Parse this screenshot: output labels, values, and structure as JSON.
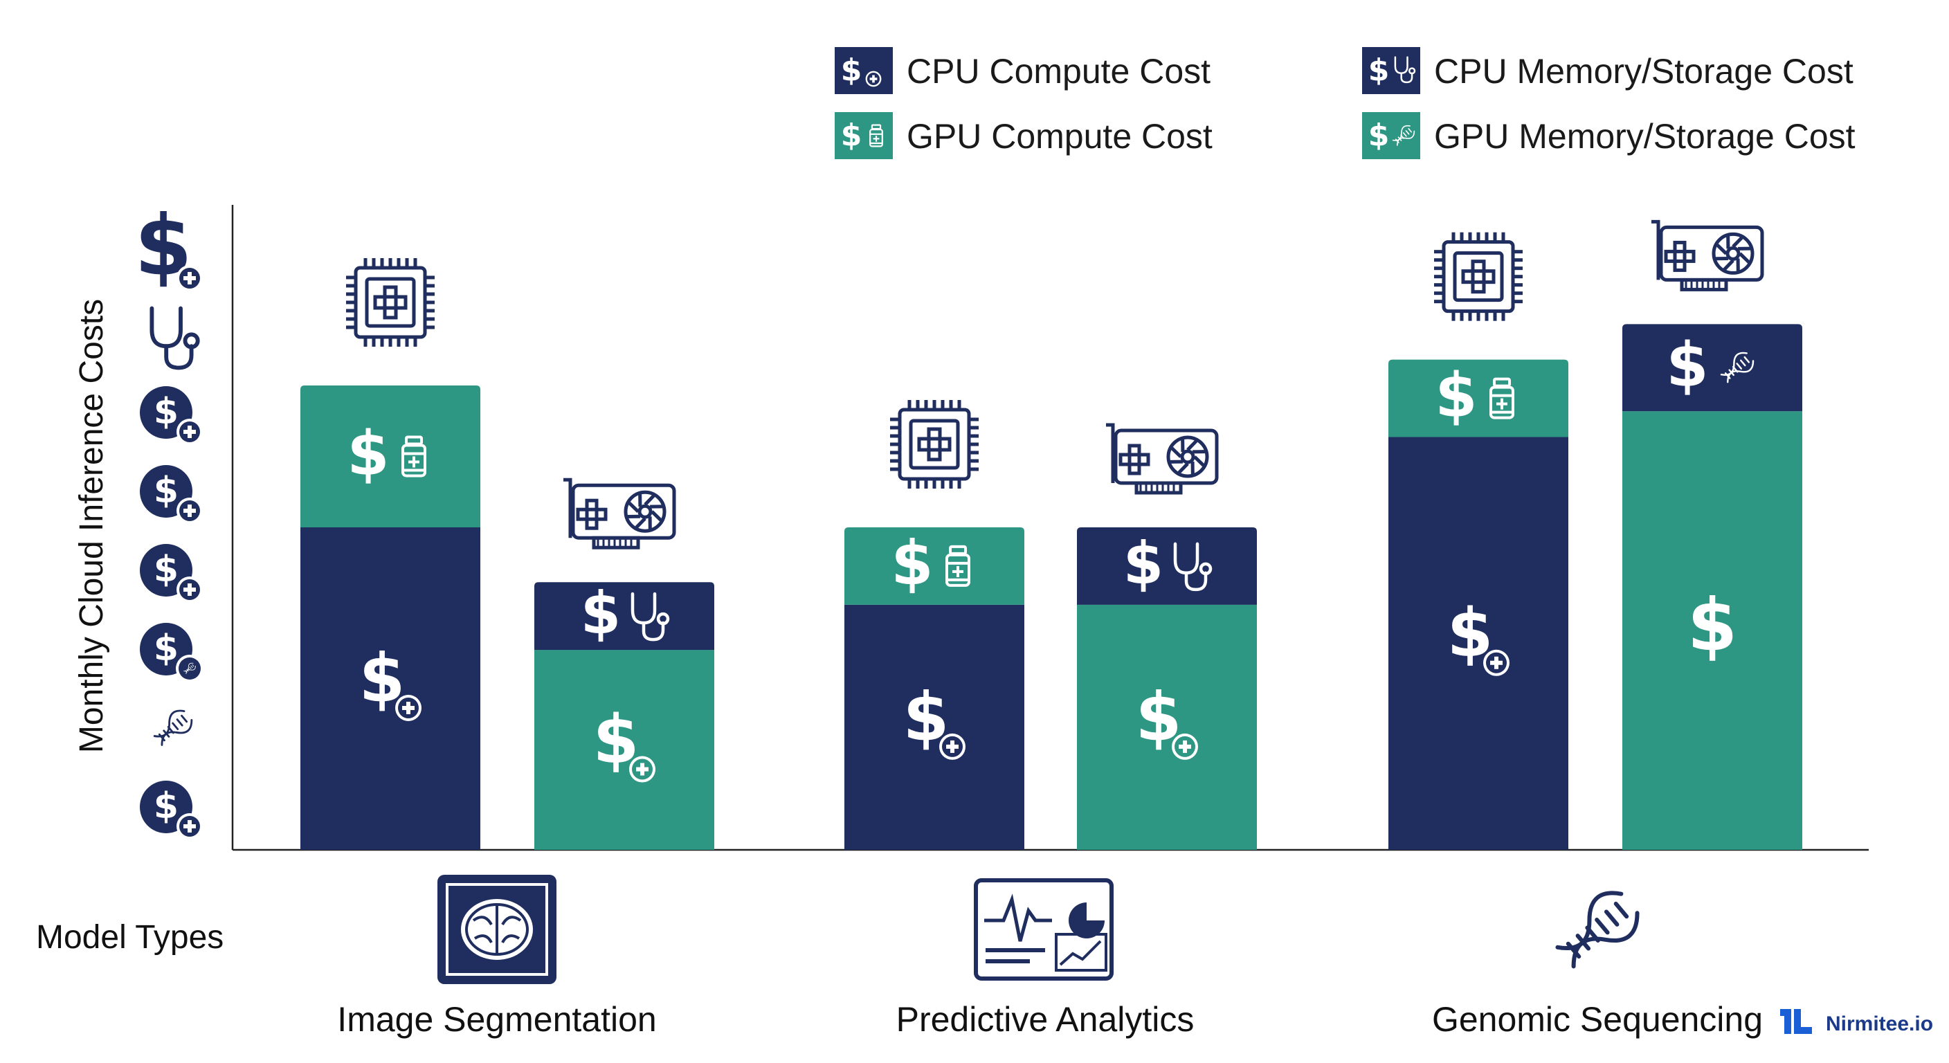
{
  "chart_data": {
    "type": "bar",
    "stacked": true,
    "ylabel": "Monthly Cloud Inference Costs",
    "xlabel": "Model Types",
    "categories": [
      "Image Segmentation",
      "Predictive Analytics",
      "Genomic Sequencing"
    ],
    "ylim": [
      0,
      100
    ],
    "grid": false,
    "legend_position": "top-right",
    "legend": [
      {
        "label": "CPU Compute Cost",
        "color": "#1f2e5e",
        "icon": "dollar-plus-icon"
      },
      {
        "label": "CPU Memory/Storage Cost",
        "color": "#1f2e5e",
        "icon": "dollar-stethoscope-icon"
      },
      {
        "label": "GPU Compute Cost",
        "color": "#2e9784",
        "icon": "dollar-medicine-icon"
      },
      {
        "label": "GPU Memory/Storage Cost",
        "color": "#2e9784",
        "icon": "dollar-dna-icon"
      }
    ],
    "bars": [
      {
        "category": "Image Segmentation",
        "hardware": "cpu",
        "hardware_icon": "cpu-chip-icon",
        "segments": [
          {
            "series": "CPU Compute Cost",
            "value": 50,
            "color": "#1f2e5e",
            "icon": "dollar-plus-icon"
          },
          {
            "series": "GPU Compute Cost",
            "value": 22,
            "color": "#2e9784",
            "icon": "dollar-medicine-icon"
          }
        ]
      },
      {
        "category": "Image Segmentation",
        "hardware": "gpu",
        "hardware_icon": "gpu-card-icon",
        "segments": [
          {
            "series": "GPU Compute Cost",
            "value": 31,
            "color": "#2e9784",
            "icon": "dollar-plus-icon"
          },
          {
            "series": "CPU Memory/Storage Cost",
            "value": 10.5,
            "color": "#1f2e5e",
            "icon": "dollar-stethoscope-icon"
          }
        ]
      },
      {
        "category": "Predictive Analytics",
        "hardware": "cpu",
        "hardware_icon": "cpu-chip-icon",
        "segments": [
          {
            "series": "CPU Compute Cost",
            "value": 38,
            "color": "#1f2e5e",
            "icon": "dollar-plus-icon"
          },
          {
            "series": "GPU Compute Cost",
            "value": 12,
            "color": "#2e9784",
            "icon": "dollar-medicine-icon"
          }
        ]
      },
      {
        "category": "Predictive Analytics",
        "hardware": "gpu",
        "hardware_icon": "gpu-card-icon",
        "segments": [
          {
            "series": "GPU Compute Cost",
            "value": 38,
            "color": "#2e9784",
            "icon": "dollar-plus-icon"
          },
          {
            "series": "CPU Memory/Storage Cost",
            "value": 12,
            "color": "#1f2e5e",
            "icon": "dollar-stethoscope-icon"
          }
        ]
      },
      {
        "category": "Genomic Sequencing",
        "hardware": "cpu",
        "hardware_icon": "cpu-chip-icon",
        "segments": [
          {
            "series": "CPU Compute Cost",
            "value": 64,
            "color": "#1f2e5e",
            "icon": "dollar-plus-icon"
          },
          {
            "series": "GPU Compute Cost",
            "value": 12,
            "color": "#2e9784",
            "icon": "dollar-medicine-icon"
          }
        ]
      },
      {
        "category": "Genomic Sequencing",
        "hardware": "gpu",
        "hardware_icon": "gpu-card-icon",
        "segments": [
          {
            "series": "GPU Compute Cost",
            "value": 68,
            "color": "#2e9784",
            "icon": "dollar-icon"
          },
          {
            "series": "GPU Memory/Storage Cost",
            "value": 13.5,
            "color": "#1f2e5e",
            "icon": "dollar-dna-icon"
          }
        ]
      }
    ],
    "y_axis_icons": [
      "dollar-plus-icon",
      "stethoscope-icon",
      "dollar-plus-icon",
      "dollar-plus-icon",
      "dollar-plus-icon",
      "dollar-dna-icon",
      "dna-icon",
      "dollar-plus-icon"
    ],
    "category_icons": [
      "brain-scan-icon",
      "analytics-dashboard-icon",
      "dna-helix-icon"
    ]
  },
  "brand": {
    "name": "Nirmitee.io",
    "icon": "nirmitee-logo-icon"
  }
}
